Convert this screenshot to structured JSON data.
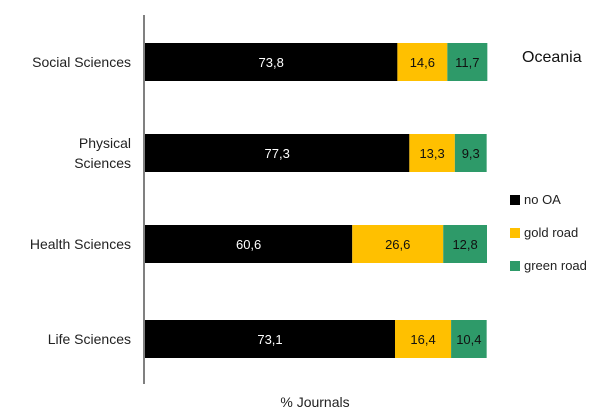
{
  "chart_data": {
    "type": "bar",
    "orientation": "horizontal",
    "stacked": true,
    "title": "Oceania",
    "xlabel": "% Journals",
    "ylabel": "",
    "categories": [
      "Social Sciences",
      "Physical Sciences",
      "Health Sciences",
      "Life Sciences"
    ],
    "category_lines": [
      [
        "Social Sciences"
      ],
      [
        "Physical",
        "Sciences"
      ],
      [
        "Health Sciences"
      ],
      [
        "Life Sciences"
      ]
    ],
    "xlim": [
      0,
      100
    ],
    "series": [
      {
        "name": "no OA",
        "color": "#000000",
        "label_color": "#ffffff",
        "values": [
          73.8,
          77.3,
          60.6,
          73.1
        ],
        "labels": [
          "73,8",
          "77,3",
          "60,6",
          "73,1"
        ]
      },
      {
        "name": "gold road",
        "color": "#ffc000",
        "label_color": "#111111",
        "values": [
          14.6,
          13.3,
          26.6,
          16.4
        ],
        "labels": [
          "14,6",
          "13,3",
          "26,6",
          "16,4"
        ]
      },
      {
        "name": "green road",
        "color": "#2e9a69",
        "label_color": "#111111",
        "values": [
          11.7,
          9.3,
          12.8,
          10.4
        ],
        "labels": [
          "11,7",
          "9,3",
          "12,8",
          "10,4"
        ]
      }
    ],
    "legend_position": "right",
    "grid": false
  }
}
